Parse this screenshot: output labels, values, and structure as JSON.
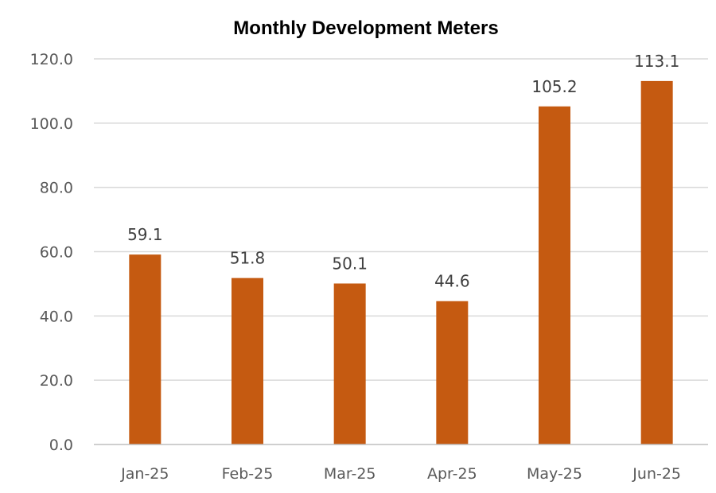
{
  "chart_data": {
    "type": "bar",
    "title": "Monthly Development Meters",
    "categories": [
      "Jan-25",
      "Feb-25",
      "Mar-25",
      "Apr-25",
      "May-25",
      "Jun-25"
    ],
    "series": [
      {
        "values": [
          59.1,
          51.8,
          50.1,
          44.6,
          105.2,
          113.1
        ]
      }
    ],
    "data_labels": [
      "59.1",
      "51.8",
      "50.1",
      "44.6",
      "105.2",
      "113.1"
    ],
    "y_ticks": [
      "0.0",
      "20.0",
      "40.0",
      "60.0",
      "80.0",
      "100.0",
      "120.0"
    ],
    "y_tick_values": [
      0,
      20,
      40,
      60,
      80,
      100,
      120
    ],
    "ylim": [
      0,
      120
    ],
    "xlabel": "",
    "ylabel": "",
    "grid": true,
    "legend": "none",
    "colors": {
      "bar": "#C55A11",
      "grid": "#D9D9D9",
      "axis": "#BFBFBF",
      "tick_text": "#595959",
      "label_text": "#404040"
    }
  }
}
